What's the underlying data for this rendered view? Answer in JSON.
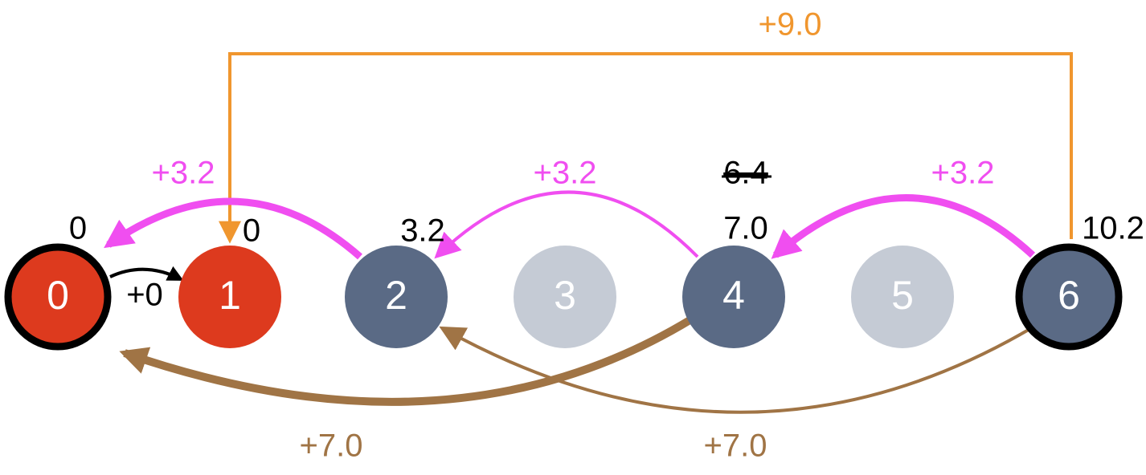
{
  "nodes": [
    {
      "label": "0",
      "value": "0"
    },
    {
      "label": "1",
      "value": "0"
    },
    {
      "label": "2",
      "value": "3.2"
    },
    {
      "label": "3"
    },
    {
      "label": "4",
      "old_value": "6.4",
      "value": "7.0"
    },
    {
      "label": "5"
    },
    {
      "label": "6",
      "value": "10.2"
    }
  ],
  "edges": [
    {
      "from": "0",
      "to": "1",
      "label": "+0"
    },
    {
      "from": "2",
      "to": "0",
      "label": "+3.2"
    },
    {
      "from": "4",
      "to": "2",
      "label": "+3.2"
    },
    {
      "from": "6",
      "to": "4",
      "label": "+3.2"
    },
    {
      "from": "4",
      "to": "0",
      "label": "+7.0"
    },
    {
      "from": "6",
      "to": "2",
      "label": "+7.0"
    },
    {
      "from": "6",
      "to": "1",
      "label": "+9.0"
    }
  ]
}
